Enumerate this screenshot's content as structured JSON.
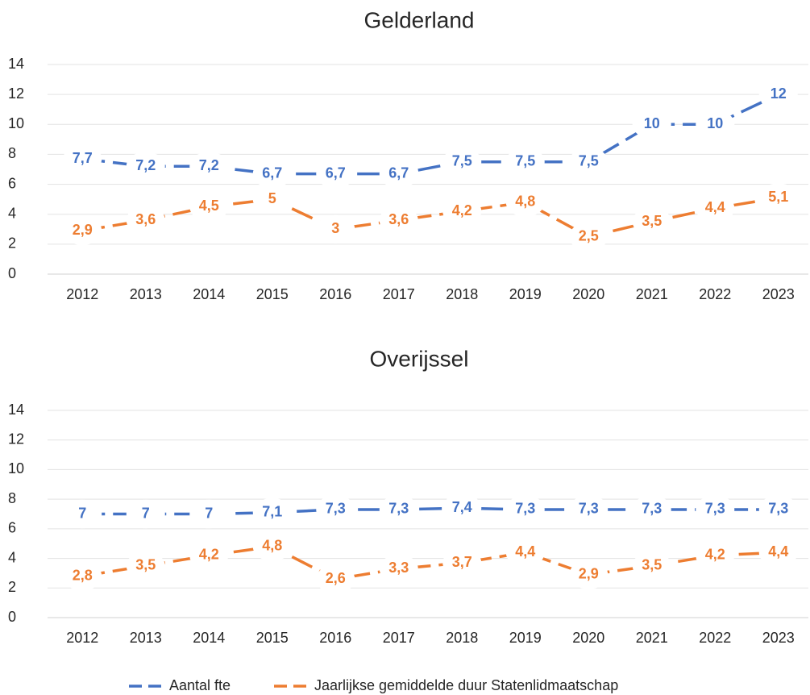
{
  "chart_data": [
    {
      "type": "line",
      "title": "Gelderland",
      "categories": [
        "2012",
        "2013",
        "2014",
        "2015",
        "2016",
        "2017",
        "2018",
        "2019",
        "2020",
        "2021",
        "2022",
        "2023"
      ],
      "series": [
        {
          "name": "Aantal fte",
          "color": "#4472c4",
          "values": [
            7.7,
            7.2,
            7.2,
            6.7,
            6.7,
            6.7,
            7.5,
            7.5,
            7.5,
            10,
            10,
            12
          ],
          "value_labels": [
            "7,7",
            "7,2",
            "7,2",
            "6,7",
            "6,7",
            "6,7",
            "7,5",
            "7,5",
            "7,5",
            "10",
            "10",
            "12"
          ]
        },
        {
          "name": "Jaarlijkse gemiddelde duur Statenlidmaatschap",
          "color": "#ed7d31",
          "values": [
            2.9,
            3.6,
            4.5,
            5,
            3,
            3.6,
            4.2,
            4.8,
            2.5,
            3.5,
            4.4,
            5.1
          ],
          "value_labels": [
            "2,9",
            "3,6",
            "4,5",
            "5",
            "3",
            "3,6",
            "4,2",
            "4,8",
            "2,5",
            "3,5",
            "4,4",
            "5,1"
          ]
        }
      ],
      "ylim": [
        0,
        14
      ],
      "yticks": [
        0,
        2,
        4,
        6,
        8,
        10,
        12,
        14
      ],
      "grid": true
    },
    {
      "type": "line",
      "title": "Overijssel",
      "categories": [
        "2012",
        "2013",
        "2014",
        "2015",
        "2016",
        "2017",
        "2018",
        "2019",
        "2020",
        "2021",
        "2022",
        "2023"
      ],
      "series": [
        {
          "name": "Aantal fte",
          "color": "#4472c4",
          "values": [
            7,
            7,
            7,
            7.1,
            7.3,
            7.3,
            7.4,
            7.3,
            7.3,
            7.3,
            7.3,
            7.3
          ],
          "value_labels": [
            "7",
            "7",
            "7",
            "7,1",
            "7,3",
            "7,3",
            "7,4",
            "7,3",
            "7,3",
            "7,3",
            "7,3",
            "7,3"
          ]
        },
        {
          "name": "Jaarlijkse gemiddelde duur Statenlidmaatschap",
          "color": "#ed7d31",
          "values": [
            2.8,
            3.5,
            4.2,
            4.8,
            2.6,
            3.3,
            3.7,
            4.4,
            2.9,
            3.5,
            4.2,
            4.4
          ],
          "value_labels": [
            "2,8",
            "3,5",
            "4,2",
            "4,8",
            "2,6",
            "3,3",
            "3,7",
            "4,4",
            "2,9",
            "3,5",
            "4,2",
            "4,4"
          ]
        }
      ],
      "ylim": [
        0,
        14
      ],
      "yticks": [
        0,
        2,
        4,
        6,
        8,
        10,
        12,
        14
      ],
      "grid": true
    }
  ]
}
